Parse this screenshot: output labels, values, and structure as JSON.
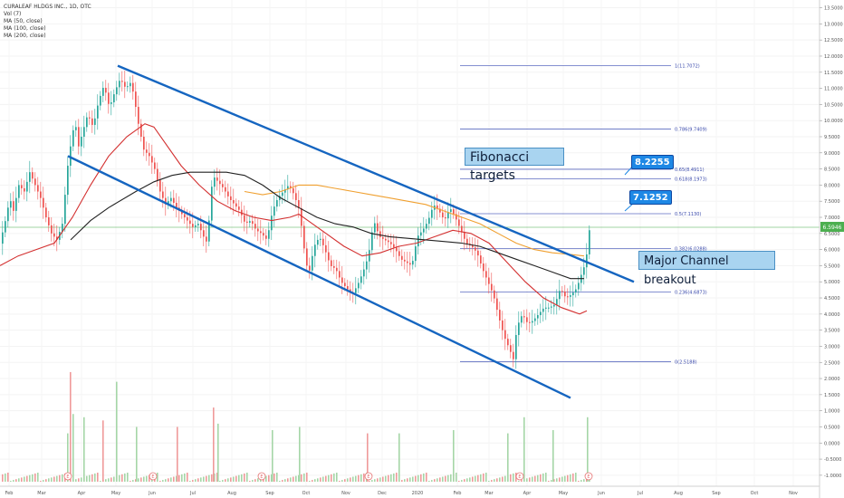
{
  "legend": {
    "symbol_line": "CURALEAF HLDGS INC., 1D, OTC",
    "vol": "Vol (7)",
    "ma50": "MA (50, close)",
    "ma100": "MA (100, close)",
    "ma200": "MA (200, close)"
  },
  "annotations": {
    "fibonacci_targets": "Fibonacci  targets",
    "major_breakout": "Major Channel breakout",
    "target_1": "8.2255",
    "target_2": "7.1252"
  },
  "current_price": "6.5946",
  "chart_data": {
    "type": "candlestick",
    "x_tick_labels": [
      "Feb",
      "Mar",
      "Apr",
      "May",
      "Jun",
      "Jul",
      "Aug",
      "Sep",
      "Oct",
      "Nov",
      "Dec",
      "2020",
      "Feb",
      "Mar",
      "Apr",
      "May",
      "Jun",
      "Jul",
      "Aug",
      "Sep",
      "Oct",
      "Nov"
    ],
    "y_price_ticks": [
      "13.5000",
      "13.0000",
      "12.5000",
      "12.0000",
      "11.5000",
      "11.0000",
      "10.5000",
      "10.0000",
      "9.5000",
      "9.0000",
      "8.5000",
      "8.0000",
      "7.5000",
      "7.0000",
      "6.5000",
      "6.0000",
      "5.5000",
      "5.0000",
      "4.5000",
      "4.0000",
      "3.5000",
      "3.0000",
      "2.5000",
      "2.0000",
      "1.5000",
      "1.0000",
      "0.5000",
      "0.0000",
      "-0.5000",
      "-1.0000"
    ],
    "ylim": [
      -1.2,
      13.6
    ],
    "fib_levels": [
      {
        "label": "1(11.7072)",
        "value": 11.7072
      },
      {
        "label": "0.786(9.7409)",
        "value": 9.7409
      },
      {
        "label": "0.65(8.4911)",
        "value": 8.4911
      },
      {
        "label": "0.618(8.1973)",
        "value": 8.1973
      },
      {
        "label": "0.5(7.1130)",
        "value": 7.113
      },
      {
        "label": "0.382(6.0288)",
        "value": 6.0288
      },
      {
        "label": "0.236(4.6873)",
        "value": 4.6873
      },
      {
        "label": "0(2.5188)",
        "value": 2.5188
      }
    ],
    "price_path": [
      [
        0,
        6.3
      ],
      [
        6,
        7.0
      ],
      [
        10,
        7.6
      ],
      [
        14,
        7.2
      ],
      [
        20,
        8.0
      ],
      [
        26,
        7.8
      ],
      [
        32,
        8.4
      ],
      [
        38,
        8.0
      ],
      [
        44,
        7.6
      ],
      [
        50,
        7.0
      ],
      [
        56,
        6.5
      ],
      [
        62,
        6.3
      ],
      [
        68,
        6.8
      ],
      [
        74,
        8.6
      ],
      [
        78,
        9.4
      ],
      [
        82,
        10.0
      ],
      [
        86,
        9.2
      ],
      [
        90,
        9.6
      ],
      [
        96,
        10.2
      ],
      [
        102,
        9.8
      ],
      [
        108,
        10.6
      ],
      [
        114,
        11.1
      ],
      [
        120,
        10.4
      ],
      [
        126,
        10.9
      ],
      [
        132,
        11.3
      ],
      [
        138,
        11.0
      ],
      [
        144,
        11.2
      ],
      [
        148,
        10.6
      ],
      [
        152,
        9.9
      ],
      [
        158,
        9.1
      ],
      [
        164,
        8.9
      ],
      [
        170,
        8.5
      ],
      [
        176,
        7.8
      ],
      [
        182,
        7.4
      ],
      [
        188,
        7.6
      ],
      [
        194,
        7.3
      ],
      [
        200,
        7.1
      ],
      [
        206,
        6.9
      ],
      [
        212,
        6.7
      ],
      [
        218,
        6.8
      ],
      [
        224,
        6.4
      ],
      [
        228,
        6.2
      ],
      [
        234,
        8.3
      ],
      [
        240,
        8.1
      ],
      [
        246,
        7.9
      ],
      [
        252,
        7.6
      ],
      [
        258,
        7.4
      ],
      [
        264,
        7.2
      ],
      [
        270,
        6.8
      ],
      [
        276,
        6.9
      ],
      [
        282,
        6.6
      ],
      [
        288,
        6.5
      ],
      [
        294,
        6.3
      ],
      [
        300,
        7.2
      ],
      [
        306,
        7.6
      ],
      [
        312,
        7.8
      ],
      [
        318,
        8.0
      ],
      [
        324,
        7.7
      ],
      [
        330,
        7.2
      ],
      [
        336,
        5.8
      ],
      [
        340,
        5.2
      ],
      [
        346,
        6.1
      ],
      [
        352,
        6.4
      ],
      [
        358,
        6.0
      ],
      [
        364,
        5.5
      ],
      [
        370,
        5.4
      ],
      [
        376,
        5.0
      ],
      [
        382,
        4.8
      ],
      [
        388,
        4.6
      ],
      [
        394,
        4.9
      ],
      [
        400,
        5.3
      ],
      [
        406,
        5.8
      ],
      [
        412,
        6.9
      ],
      [
        418,
        6.4
      ],
      [
        424,
        6.3
      ],
      [
        430,
        6.2
      ],
      [
        436,
        6.0
      ],
      [
        442,
        5.7
      ],
      [
        448,
        5.6
      ],
      [
        454,
        5.5
      ],
      [
        460,
        6.4
      ],
      [
        466,
        6.6
      ],
      [
        472,
        6.9
      ],
      [
        478,
        7.4
      ],
      [
        484,
        7.2
      ],
      [
        490,
        6.9
      ],
      [
        496,
        7.3
      ],
      [
        502,
        7.0
      ],
      [
        508,
        6.6
      ],
      [
        514,
        6.2
      ],
      [
        520,
        6.1
      ],
      [
        526,
        5.9
      ],
      [
        532,
        5.4
      ],
      [
        538,
        5.0
      ],
      [
        544,
        4.6
      ],
      [
        550,
        3.9
      ],
      [
        556,
        3.3
      ],
      [
        562,
        2.9
      ],
      [
        566,
        2.6
      ],
      [
        570,
        3.6
      ],
      [
        576,
        4.0
      ],
      [
        582,
        3.7
      ],
      [
        588,
        3.8
      ],
      [
        594,
        4.0
      ],
      [
        600,
        4.2
      ],
      [
        606,
        4.2
      ],
      [
        612,
        4.3
      ],
      [
        618,
        4.8
      ],
      [
        624,
        4.5
      ],
      [
        630,
        4.6
      ],
      [
        636,
        4.8
      ],
      [
        642,
        5.3
      ],
      [
        646,
        5.6
      ],
      [
        650,
        6.6
      ]
    ],
    "series": [
      {
        "name": "MA (50, close)",
        "color": "#d32f2f",
        "path": [
          [
            0,
            5.5
          ],
          [
            20,
            5.8
          ],
          [
            40,
            6.0
          ],
          [
            60,
            6.2
          ],
          [
            80,
            7.0
          ],
          [
            100,
            8.0
          ],
          [
            120,
            8.9
          ],
          [
            140,
            9.5
          ],
          [
            160,
            9.9
          ],
          [
            170,
            9.8
          ],
          [
            180,
            9.4
          ],
          [
            200,
            8.6
          ],
          [
            220,
            8.0
          ],
          [
            240,
            7.5
          ],
          [
            260,
            7.2
          ],
          [
            280,
            7.0
          ],
          [
            300,
            6.9
          ],
          [
            320,
            7.0
          ],
          [
            330,
            7.1
          ],
          [
            340,
            6.9
          ],
          [
            360,
            6.5
          ],
          [
            380,
            6.1
          ],
          [
            400,
            5.8
          ],
          [
            420,
            5.9
          ],
          [
            440,
            6.1
          ],
          [
            460,
            6.2
          ],
          [
            480,
            6.4
          ],
          [
            500,
            6.6
          ],
          [
            520,
            6.5
          ],
          [
            540,
            6.2
          ],
          [
            560,
            5.6
          ],
          [
            580,
            5.0
          ],
          [
            600,
            4.5
          ],
          [
            620,
            4.2
          ],
          [
            640,
            4.0
          ],
          [
            648,
            4.1
          ]
        ]
      },
      {
        "name": "MA (100, close)",
        "color": "#f0a030",
        "path": [
          [
            270,
            7.8
          ],
          [
            290,
            7.7
          ],
          [
            310,
            7.8
          ],
          [
            330,
            8.0
          ],
          [
            350,
            8.0
          ],
          [
            370,
            7.9
          ],
          [
            390,
            7.8
          ],
          [
            410,
            7.7
          ],
          [
            430,
            7.6
          ],
          [
            450,
            7.5
          ],
          [
            470,
            7.4
          ],
          [
            490,
            7.2
          ],
          [
            510,
            7.0
          ],
          [
            530,
            6.8
          ],
          [
            550,
            6.5
          ],
          [
            570,
            6.2
          ],
          [
            590,
            6.0
          ],
          [
            610,
            5.9
          ],
          [
            630,
            5.85
          ],
          [
            645,
            5.8
          ]
        ]
      },
      {
        "name": "MA (200, close)",
        "color": "#222222",
        "path": [
          [
            78,
            6.3
          ],
          [
            100,
            6.9
          ],
          [
            120,
            7.3
          ],
          [
            150,
            7.8
          ],
          [
            170,
            8.1
          ],
          [
            190,
            8.3
          ],
          [
            210,
            8.4
          ],
          [
            230,
            8.4
          ],
          [
            250,
            8.4
          ],
          [
            270,
            8.3
          ],
          [
            290,
            8.0
          ],
          [
            310,
            7.6
          ],
          [
            330,
            7.3
          ],
          [
            350,
            7.0
          ],
          [
            370,
            6.8
          ],
          [
            390,
            6.7
          ],
          [
            410,
            6.5
          ],
          [
            430,
            6.4
          ],
          [
            450,
            6.35
          ],
          [
            470,
            6.3
          ],
          [
            490,
            6.25
          ],
          [
            510,
            6.2
          ],
          [
            530,
            6.1
          ],
          [
            550,
            5.9
          ],
          [
            570,
            5.7
          ],
          [
            590,
            5.5
          ],
          [
            610,
            5.3
          ],
          [
            630,
            5.1
          ],
          [
            645,
            5.1
          ]
        ]
      }
    ],
    "channel": {
      "upper": [
        [
          130,
          11.7
        ],
        [
          700,
          5.0
        ]
      ],
      "lower": [
        [
          75,
          8.9
        ],
        [
          630,
          1.4
        ]
      ]
    },
    "volume_ticks": [
      [
        74,
        0.3
      ],
      [
        77,
        2.2
      ],
      [
        80,
        0.9
      ],
      [
        92,
        0.8
      ],
      [
        113,
        0.7
      ],
      [
        128,
        1.9
      ],
      [
        150,
        0.5
      ],
      [
        195,
        0.5
      ],
      [
        235,
        1.1
      ],
      [
        240,
        0.6
      ],
      [
        300,
        0.4
      ],
      [
        330,
        0.5
      ],
      [
        405,
        0.3
      ],
      [
        440,
        0.3
      ],
      [
        500,
        0.4
      ],
      [
        560,
        0.3
      ],
      [
        578,
        0.8
      ],
      [
        610,
        0.4
      ],
      [
        648,
        0.8
      ]
    ],
    "event_markers": [
      [
        75,
        "E"
      ],
      [
        169,
        "E"
      ],
      [
        289,
        "E"
      ],
      [
        407,
        "E"
      ],
      [
        574,
        "E"
      ],
      [
        650,
        "E"
      ]
    ]
  }
}
